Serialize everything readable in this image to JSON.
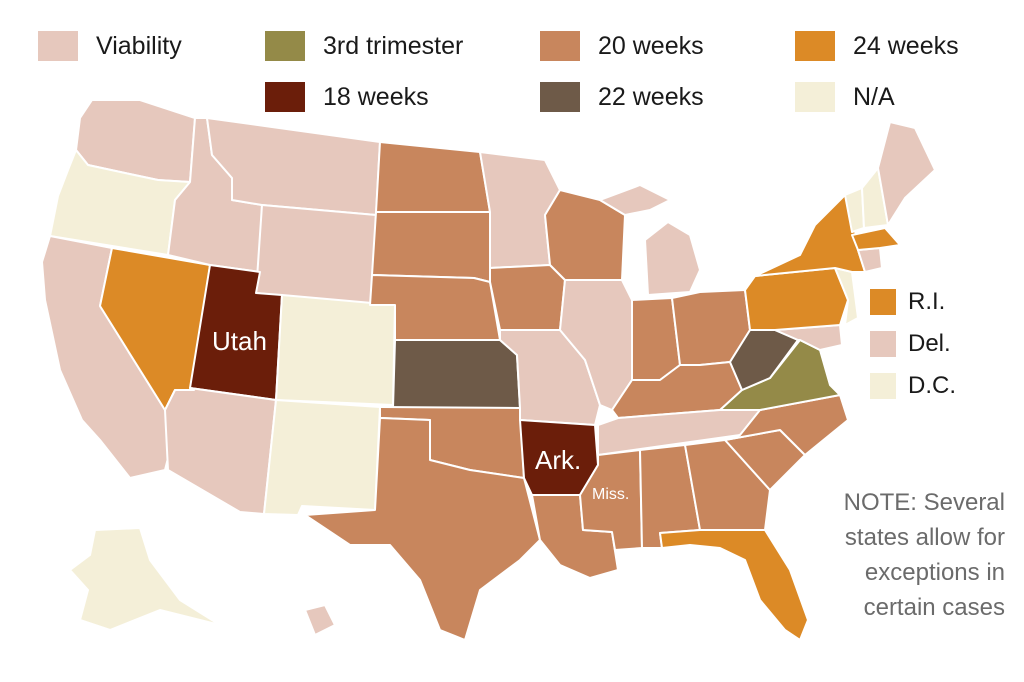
{
  "colors": {
    "viability": "#e6c8bd",
    "third_trimester": "#948a48",
    "twenty_weeks": "#c8865d",
    "twentyfour_weeks": "#dc8a26",
    "eighteen_weeks": "#6b1e0a",
    "twentytwo_weeks": "#6e5a48",
    "na": "#f4efd8"
  },
  "legend": [
    {
      "key": "viability",
      "label": "Viability"
    },
    {
      "key": "third_trimester",
      "label": "3rd trimester"
    },
    {
      "key": "twenty_weeks",
      "label": "20 weeks"
    },
    {
      "key": "twentyfour_weeks",
      "label": "24 weeks"
    },
    {
      "key": "eighteen_weeks",
      "label": "18 weeks"
    },
    {
      "key": "twentytwo_weeks",
      "label": "22 weeks"
    },
    {
      "key": "na",
      "label": "N/A"
    }
  ],
  "small_state_legend": [
    {
      "key": "twentyfour_weeks",
      "label": "R.I."
    },
    {
      "key": "viability",
      "label": "Del."
    },
    {
      "key": "na",
      "label": "D.C."
    }
  ],
  "map_labels": {
    "utah": "Utah",
    "arkansas": "Ark.",
    "mississippi": "Miss."
  },
  "note": "NOTE: Several states allow for exceptions in certain cases",
  "states": [
    {
      "name": "WA",
      "key": "viability"
    },
    {
      "name": "OR",
      "key": "na"
    },
    {
      "name": "CA",
      "key": "viability"
    },
    {
      "name": "NV",
      "key": "twentyfour_weeks"
    },
    {
      "name": "ID",
      "key": "viability"
    },
    {
      "name": "MT",
      "key": "viability"
    },
    {
      "name": "WY",
      "key": "viability"
    },
    {
      "name": "UT",
      "key": "eighteen_weeks"
    },
    {
      "name": "AZ",
      "key": "viability"
    },
    {
      "name": "CO",
      "key": "na"
    },
    {
      "name": "NM",
      "key": "na"
    },
    {
      "name": "ND",
      "key": "twenty_weeks"
    },
    {
      "name": "SD",
      "key": "twenty_weeks"
    },
    {
      "name": "NE",
      "key": "twenty_weeks"
    },
    {
      "name": "KS",
      "key": "twentytwo_weeks"
    },
    {
      "name": "OK",
      "key": "twenty_weeks"
    },
    {
      "name": "TX",
      "key": "twenty_weeks"
    },
    {
      "name": "MN",
      "key": "viability"
    },
    {
      "name": "IA",
      "key": "twenty_weeks"
    },
    {
      "name": "MO",
      "key": "viability"
    },
    {
      "name": "AR",
      "key": "eighteen_weeks"
    },
    {
      "name": "LA",
      "key": "twenty_weeks"
    },
    {
      "name": "WI",
      "key": "twenty_weeks"
    },
    {
      "name": "IL",
      "key": "viability"
    },
    {
      "name": "MI",
      "key": "viability"
    },
    {
      "name": "IN",
      "key": "twenty_weeks"
    },
    {
      "name": "OH",
      "key": "twenty_weeks"
    },
    {
      "name": "KY",
      "key": "twenty_weeks"
    },
    {
      "name": "TN",
      "key": "viability"
    },
    {
      "name": "MS",
      "key": "twenty_weeks"
    },
    {
      "name": "AL",
      "key": "twenty_weeks"
    },
    {
      "name": "GA",
      "key": "twenty_weeks"
    },
    {
      "name": "FL",
      "key": "twentyfour_weeks"
    },
    {
      "name": "SC",
      "key": "twenty_weeks"
    },
    {
      "name": "NC",
      "key": "twenty_weeks"
    },
    {
      "name": "VA",
      "key": "third_trimester"
    },
    {
      "name": "WV",
      "key": "twentytwo_weeks"
    },
    {
      "name": "PA",
      "key": "twentyfour_weeks"
    },
    {
      "name": "NY",
      "key": "twentyfour_weeks"
    },
    {
      "name": "VT",
      "key": "na"
    },
    {
      "name": "NH",
      "key": "na"
    },
    {
      "name": "ME",
      "key": "viability"
    },
    {
      "name": "MA",
      "key": "twentyfour_weeks"
    },
    {
      "name": "CT",
      "key": "viability"
    },
    {
      "name": "NJ",
      "key": "na"
    },
    {
      "name": "MD",
      "key": "viability"
    },
    {
      "name": "AK",
      "key": "na"
    },
    {
      "name": "HI",
      "key": "viability"
    }
  ]
}
